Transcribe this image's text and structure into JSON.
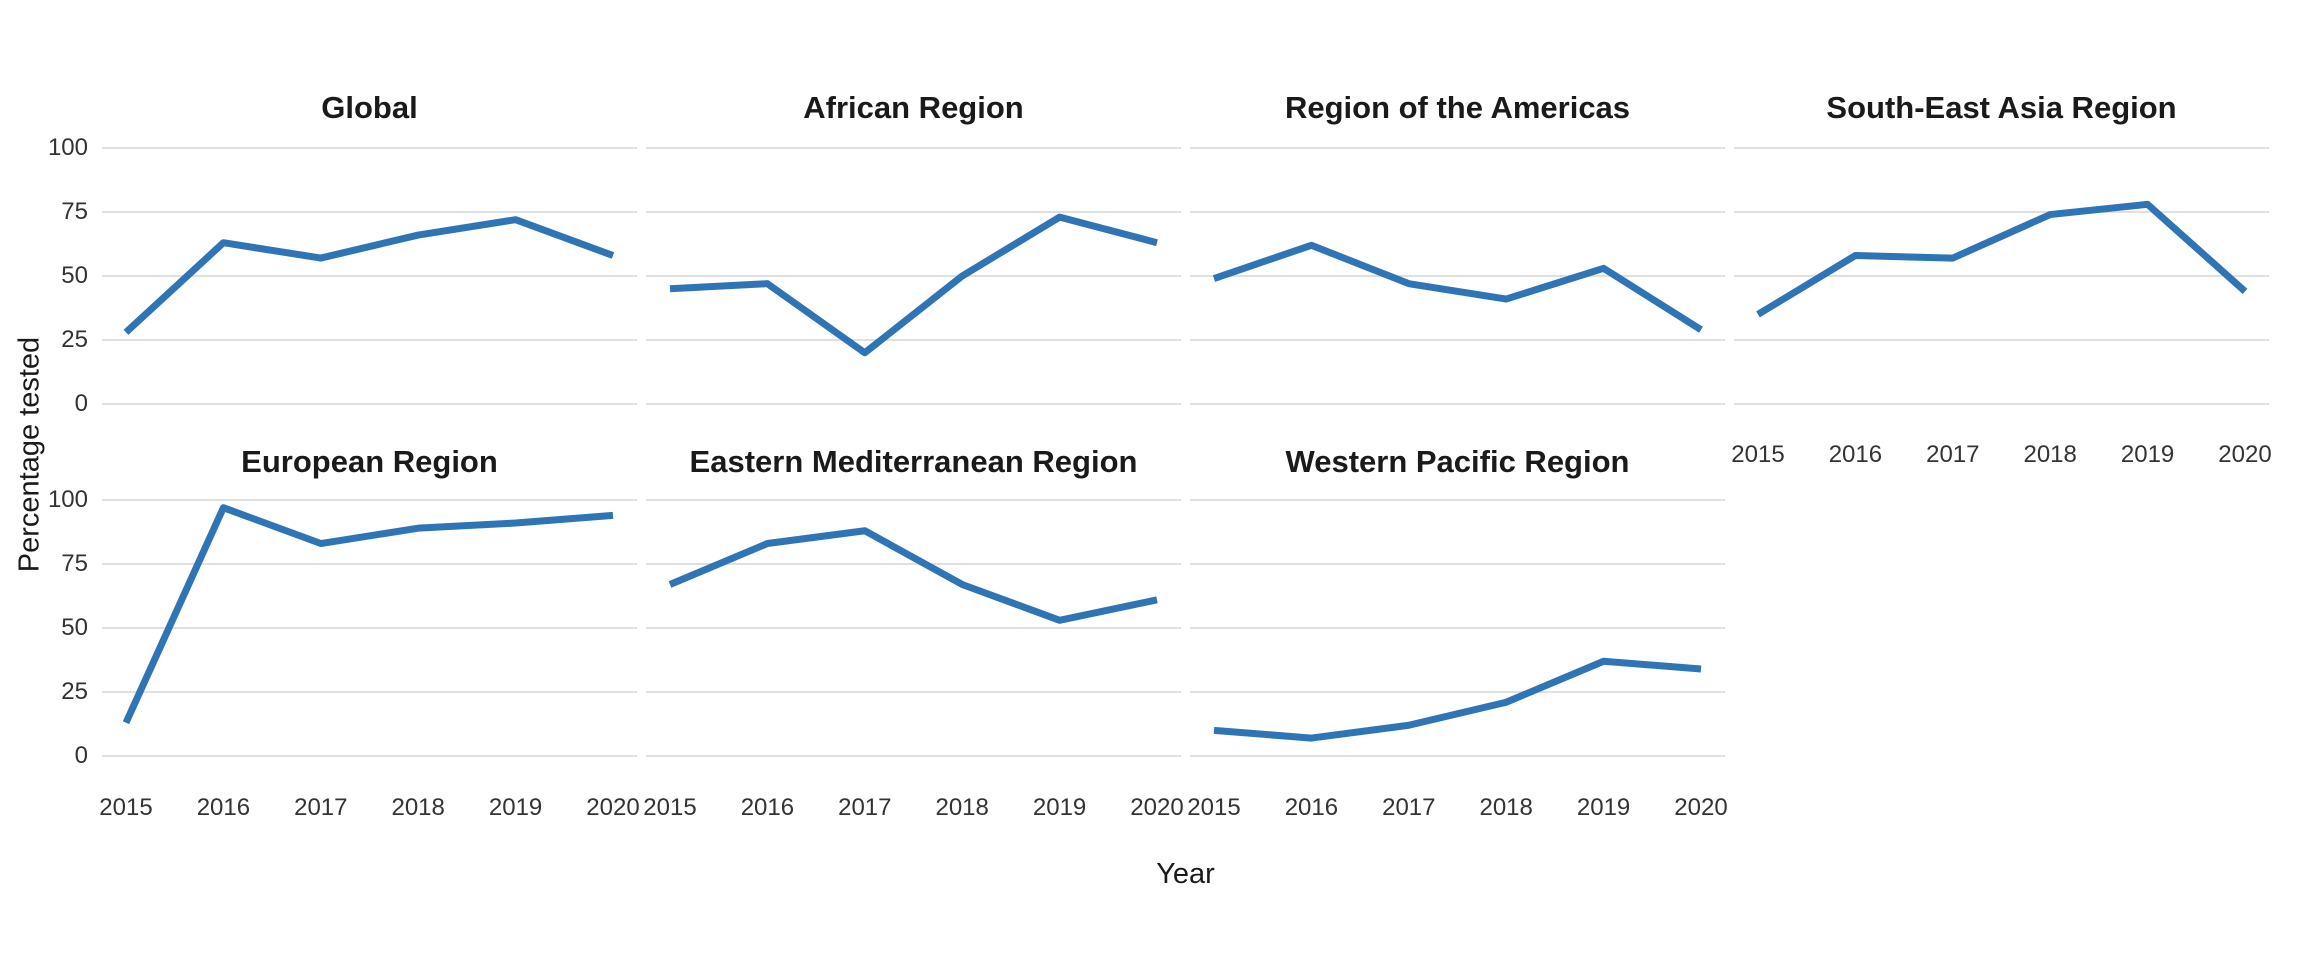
{
  "chart_data": {
    "type": "line",
    "title": "",
    "xlabel": "Year",
    "ylabel": "Percentage tested",
    "x": [
      2015,
      2016,
      2017,
      2018,
      2019,
      2020
    ],
    "ylim": [
      0,
      100
    ],
    "yticks": [
      0,
      25,
      50,
      75,
      100
    ],
    "grid": "horizontal-major-only",
    "legend": "none",
    "line_color": "#2F75B5",
    "grid_color": "#E0E0E0",
    "facets": [
      {
        "title": "Global",
        "values": [
          28,
          63,
          57,
          66,
          72,
          58
        ]
      },
      {
        "title": "African Region",
        "values": [
          45,
          47,
          20,
          50,
          73,
          63
        ]
      },
      {
        "title": "Region of the Americas",
        "values": [
          49,
          62,
          47,
          41,
          53,
          29
        ]
      },
      {
        "title": "South-East Asia Region",
        "values": [
          35,
          58,
          57,
          74,
          78,
          44
        ]
      },
      {
        "title": "European Region",
        "values": [
          13,
          97,
          83,
          89,
          91,
          94
        ]
      },
      {
        "title": "Eastern Mediterranean Region",
        "values": [
          67,
          83,
          88,
          67,
          53,
          61
        ]
      },
      {
        "title": "Western Pacific Region",
        "values": [
          10,
          7,
          12,
          21,
          37,
          34
        ]
      }
    ]
  }
}
